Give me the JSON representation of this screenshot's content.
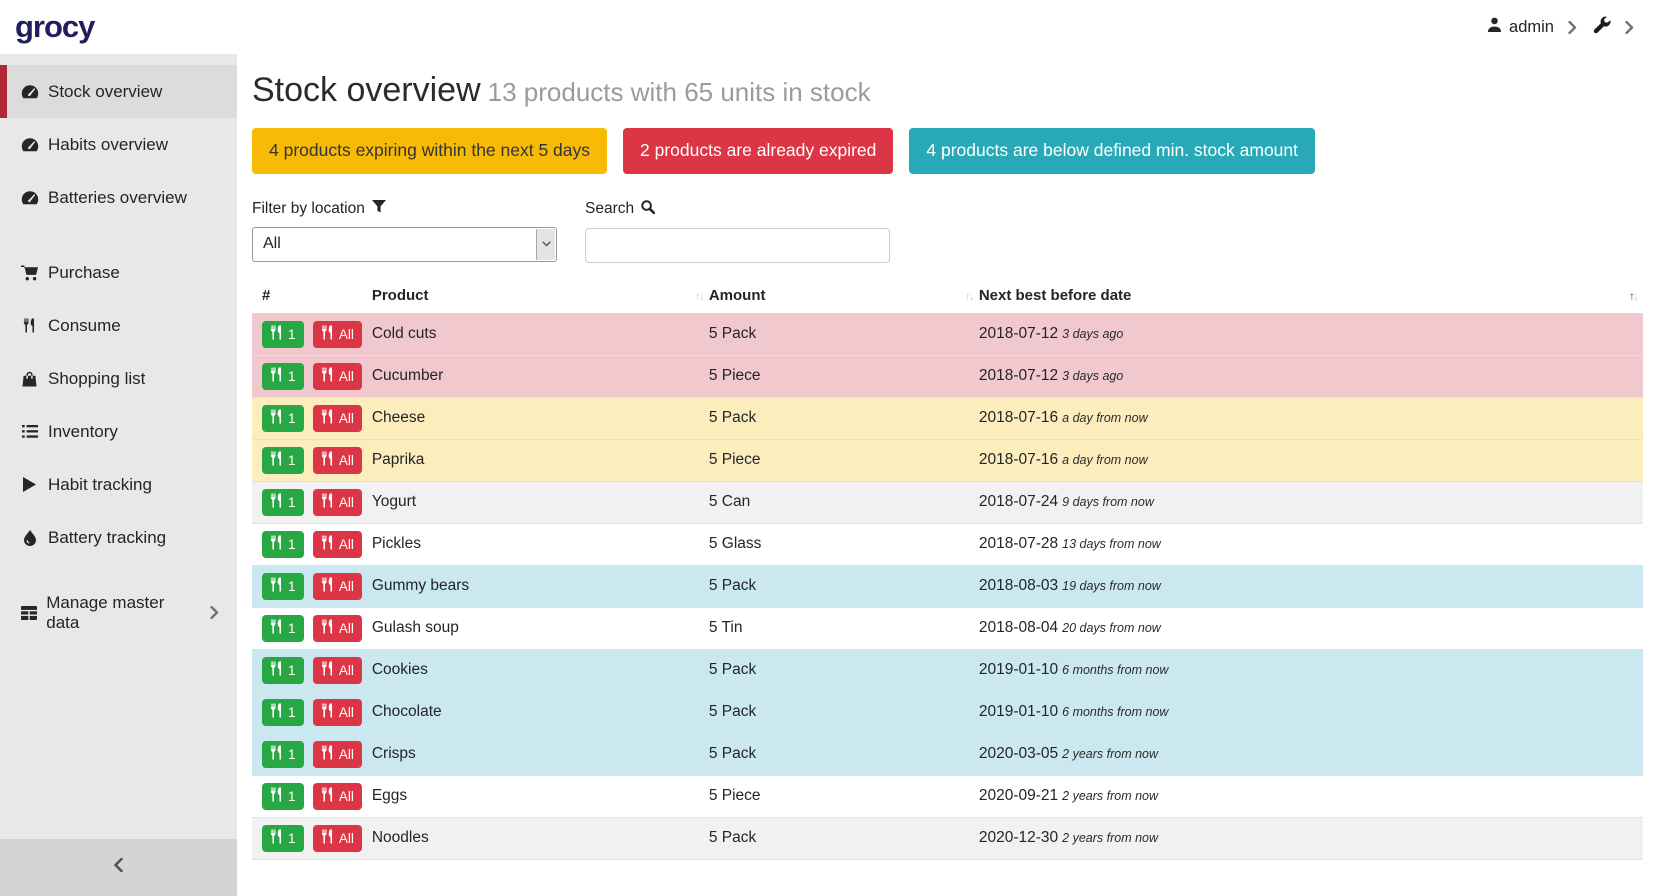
{
  "topbar": {
    "logo": "grocy",
    "user_label": "admin"
  },
  "sidebar": {
    "groups": [
      {
        "items": [
          {
            "icon": "tachometer-icon",
            "label": "Stock overview",
            "active": true
          },
          {
            "icon": "tachometer-icon",
            "label": "Habits overview",
            "active": false
          },
          {
            "icon": "tachometer-icon",
            "label": "Batteries overview",
            "active": false
          }
        ]
      },
      {
        "items": [
          {
            "icon": "cart-icon",
            "label": "Purchase",
            "active": false
          },
          {
            "icon": "utensils-icon",
            "label": "Consume",
            "active": false
          },
          {
            "icon": "bag-icon",
            "label": "Shopping list",
            "active": false
          },
          {
            "icon": "list-icon",
            "label": "Inventory",
            "active": false
          },
          {
            "icon": "play-icon",
            "label": "Habit tracking",
            "active": false
          },
          {
            "icon": "droplet-icon",
            "label": "Battery tracking",
            "active": false
          }
        ]
      },
      {
        "items": [
          {
            "icon": "table-grid-icon",
            "label": "Manage master data",
            "active": false,
            "chevron": true
          }
        ]
      }
    ]
  },
  "page": {
    "title": "Stock overview",
    "subtitle": "13 products with 65 units in stock",
    "alerts": [
      {
        "label": "4 products expiring within the next 5 days"
      },
      {
        "label": "2 products are already expired"
      },
      {
        "label": "4 products are below defined min. stock amount"
      }
    ],
    "filter": {
      "label": "Filter by location",
      "value": "All"
    },
    "search": {
      "label": "Search",
      "value": ""
    }
  },
  "table": {
    "columns": [
      "#",
      "Product",
      "Amount",
      "Next best before date"
    ],
    "row_buttons": {
      "consume_one": "1",
      "consume_all": "All"
    },
    "rows": [
      {
        "product": "Cold cuts",
        "amount": "5 Pack",
        "date": "2018-07-12",
        "timeago": "3 days ago",
        "status": "expired"
      },
      {
        "product": "Cucumber",
        "amount": "5 Piece",
        "date": "2018-07-12",
        "timeago": "3 days ago",
        "status": "expired"
      },
      {
        "product": "Cheese",
        "amount": "5 Pack",
        "date": "2018-07-16",
        "timeago": "a day from now",
        "status": "expiring"
      },
      {
        "product": "Paprika",
        "amount": "5 Piece",
        "date": "2018-07-16",
        "timeago": "a day from now",
        "status": "expiring"
      },
      {
        "product": "Yogurt",
        "amount": "5 Can",
        "date": "2018-07-24",
        "timeago": "9 days from now",
        "status": "none"
      },
      {
        "product": "Pickles",
        "amount": "5 Glass",
        "date": "2018-07-28",
        "timeago": "13 days from now",
        "status": "none"
      },
      {
        "product": "Gummy bears",
        "amount": "5 Pack",
        "date": "2018-08-03",
        "timeago": "19 days from now",
        "status": "belowmin"
      },
      {
        "product": "Gulash soup",
        "amount": "5 Tin",
        "date": "2018-08-04",
        "timeago": "20 days from now",
        "status": "none"
      },
      {
        "product": "Cookies",
        "amount": "5 Pack",
        "date": "2019-01-10",
        "timeago": "6 months from now",
        "status": "belowmin"
      },
      {
        "product": "Chocolate",
        "amount": "5 Pack",
        "date": "2019-01-10",
        "timeago": "6 months from now",
        "status": "belowmin"
      },
      {
        "product": "Crisps",
        "amount": "5 Pack",
        "date": "2020-03-05",
        "timeago": "2 years from now",
        "status": "belowmin"
      },
      {
        "product": "Eggs",
        "amount": "5 Piece",
        "date": "2020-09-21",
        "timeago": "2 years from now",
        "status": "none"
      },
      {
        "product": "Noodles",
        "amount": "5 Pack",
        "date": "2020-12-30",
        "timeago": "2 years from now",
        "status": "none"
      }
    ],
    "sort": {
      "sorted_column": "Next best before date",
      "direction": "asc"
    }
  },
  "colors": {
    "logo_navy": "#201e5f",
    "sidebar_active_border": "#b02733",
    "alert_yellow": "#f7ba05",
    "alert_red": "#dc3545",
    "alert_teal": "#29a9b8",
    "row_expired": "#f0c8ce",
    "row_expiring": "#fcedbd",
    "row_below_min": "#cbe8f0",
    "consume_one_green": "#28a745",
    "consume_all_red": "#dc3545"
  }
}
